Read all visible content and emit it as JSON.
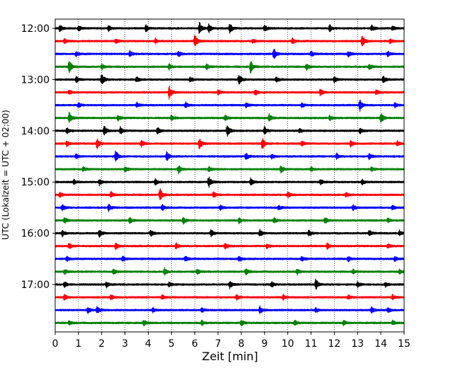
{
  "chart_data": {
    "type": "line",
    "subtype": "seismogram-helicorder",
    "xlabel": "Zeit  [min]",
    "ylabel": "UTC (Lokalzeit = UTC + 02:00)",
    "xlim": [
      0,
      15
    ],
    "x_ticks": [
      "0",
      "1",
      "2",
      "3",
      "4",
      "5",
      "6",
      "7",
      "8",
      "9",
      "10",
      "11",
      "12",
      "13",
      "14",
      "15"
    ],
    "y_tick_labels": [
      "12:00",
      "13:00",
      "14:00",
      "15:00",
      "16:00",
      "17:00"
    ],
    "grid": "vertical dotted at each minute",
    "line_minutes": 15,
    "start_time": "12:00",
    "color_cycle": [
      "#000000",
      "#ff0000",
      "#0000ff",
      "#008000"
    ],
    "traces": [
      {
        "time": "12:00",
        "color": "#000000",
        "events": [
          [
            0.2,
            0.6
          ],
          [
            1.0,
            0.5
          ],
          [
            2.3,
            0.5
          ],
          [
            3.9,
            0.6
          ],
          [
            6.2,
            1.0
          ],
          [
            6.6,
            0.7
          ],
          [
            7.5,
            1.0
          ],
          [
            9.0,
            0.5
          ],
          [
            11.8,
            0.6
          ],
          [
            13.6,
            0.5
          ],
          [
            14.5,
            0.4
          ]
        ]
      },
      {
        "time": "12:15",
        "color": "#ff0000",
        "events": [
          [
            0.4,
            0.4
          ],
          [
            2.6,
            0.5
          ],
          [
            4.3,
            0.4
          ],
          [
            6.0,
            1.1
          ],
          [
            8.5,
            0.4
          ],
          [
            10.2,
            0.5
          ],
          [
            13.2,
            1.0
          ],
          [
            14.4,
            0.4
          ]
        ]
      },
      {
        "time": "12:30",
        "color": "#0000ff",
        "events": [
          [
            0.9,
            0.4
          ],
          [
            3.2,
            0.5
          ],
          [
            5.3,
            0.5
          ],
          [
            9.4,
            0.9
          ],
          [
            11.0,
            0.5
          ],
          [
            12.6,
            0.5
          ],
          [
            14.3,
            0.4
          ]
        ]
      },
      {
        "time": "12:45",
        "color": "#008000",
        "events": [
          [
            0.6,
            1.1
          ],
          [
            2.0,
            0.5
          ],
          [
            4.9,
            0.5
          ],
          [
            6.5,
            0.5
          ],
          [
            8.4,
            1.1
          ],
          [
            10.8,
            0.5
          ],
          [
            13.5,
            0.6
          ]
        ]
      },
      {
        "time": "13:00",
        "color": "#000000",
        "events": [
          [
            0.9,
            0.5
          ],
          [
            2.0,
            1.0
          ],
          [
            3.5,
            0.5
          ],
          [
            5.8,
            0.5
          ],
          [
            7.9,
            1.0
          ],
          [
            9.5,
            0.5
          ],
          [
            12.0,
            0.5
          ],
          [
            14.1,
            0.6
          ]
        ]
      },
      {
        "time": "13:15",
        "color": "#ff0000",
        "events": [
          [
            0.6,
            0.4
          ],
          [
            4.9,
            1.1
          ],
          [
            7.0,
            0.4
          ],
          [
            8.6,
            0.5
          ],
          [
            11.4,
            0.6
          ],
          [
            13.8,
            0.4
          ]
        ]
      },
      {
        "time": "13:30",
        "color": "#0000ff",
        "events": [
          [
            1.0,
            0.4
          ],
          [
            3.5,
            0.4
          ],
          [
            5.6,
            0.5
          ],
          [
            8.2,
            0.4
          ],
          [
            10.6,
            0.4
          ],
          [
            13.1,
            1.0
          ],
          [
            14.6,
            0.4
          ]
        ]
      },
      {
        "time": "13:45",
        "color": "#008000",
        "events": [
          [
            0.6,
            1.0
          ],
          [
            2.7,
            0.5
          ],
          [
            5.0,
            0.5
          ],
          [
            7.3,
            0.5
          ],
          [
            9.2,
            0.6
          ],
          [
            11.8,
            0.4
          ],
          [
            14.0,
            0.9
          ]
        ]
      },
      {
        "time": "14:00",
        "color": "#000000",
        "events": [
          [
            0.5,
            0.5
          ],
          [
            2.1,
            0.8
          ],
          [
            2.8,
            0.6
          ],
          [
            4.4,
            0.6
          ],
          [
            7.4,
            1.1
          ],
          [
            9.0,
            0.7
          ],
          [
            10.5,
            0.4
          ],
          [
            13.1,
            0.5
          ]
        ]
      },
      {
        "time": "14:15",
        "color": "#ff0000",
        "events": [
          [
            0.5,
            0.5
          ],
          [
            1.8,
            0.9
          ],
          [
            3.7,
            0.6
          ],
          [
            6.2,
            0.9
          ],
          [
            8.9,
            1.0
          ],
          [
            10.6,
            0.5
          ],
          [
            12.7,
            0.5
          ],
          [
            14.7,
            0.4
          ]
        ]
      },
      {
        "time": "14:30",
        "color": "#0000ff",
        "events": [
          [
            0.9,
            0.4
          ],
          [
            2.6,
            1.1
          ],
          [
            4.8,
            0.8
          ],
          [
            8.2,
            0.6
          ],
          [
            9.3,
            0.4
          ],
          [
            12.1,
            0.5
          ],
          [
            13.5,
            0.5
          ]
        ]
      },
      {
        "time": "14:45",
        "color": "#008000",
        "events": [
          [
            1.2,
            0.4
          ],
          [
            3.0,
            0.5
          ],
          [
            5.3,
            0.7
          ],
          [
            6.6,
            0.5
          ],
          [
            9.7,
            0.6
          ],
          [
            11.0,
            0.4
          ],
          [
            13.6,
            0.4
          ]
        ]
      },
      {
        "time": "15:00",
        "color": "#000000",
        "events": [
          [
            0.8,
            0.4
          ],
          [
            1.9,
            0.5
          ],
          [
            4.3,
            0.5
          ],
          [
            6.6,
            1.0
          ],
          [
            8.4,
            0.6
          ],
          [
            11.4,
            0.5
          ],
          [
            13.2,
            0.5
          ]
        ]
      },
      {
        "time": "15:15",
        "color": "#ff0000",
        "events": [
          [
            0.2,
            0.4
          ],
          [
            2.4,
            0.5
          ],
          [
            4.5,
            1.1
          ],
          [
            6.8,
            0.5
          ],
          [
            10.0,
            0.5
          ],
          [
            12.5,
            0.4
          ]
        ]
      },
      {
        "time": "15:30",
        "color": "#0000ff",
        "events": [
          [
            0.3,
            0.6
          ],
          [
            2.3,
            0.6
          ],
          [
            4.6,
            0.5
          ],
          [
            7.1,
            0.4
          ],
          [
            9.6,
            0.4
          ],
          [
            12.8,
            0.5
          ],
          [
            14.5,
            0.4
          ]
        ]
      },
      {
        "time": "15:45",
        "color": "#008000",
        "events": [
          [
            0.4,
            0.5
          ],
          [
            3.2,
            0.5
          ],
          [
            5.5,
            0.6
          ],
          [
            7.9,
            0.5
          ],
          [
            9.4,
            0.5
          ],
          [
            11.6,
            0.5
          ],
          [
            14.3,
            0.4
          ]
        ]
      },
      {
        "time": "16:00",
        "color": "#000000",
        "events": [
          [
            0.3,
            0.5
          ],
          [
            1.9,
            0.7
          ],
          [
            4.1,
            0.6
          ],
          [
            6.7,
            0.6
          ],
          [
            8.8,
            0.6
          ],
          [
            10.9,
            0.5
          ],
          [
            13.5,
            0.5
          ],
          [
            14.8,
            0.4
          ]
        ]
      },
      {
        "time": "16:15",
        "color": "#ff0000",
        "events": [
          [
            0.6,
            0.5
          ],
          [
            2.6,
            0.5
          ],
          [
            5.2,
            0.6
          ],
          [
            7.3,
            0.5
          ],
          [
            9.1,
            0.4
          ],
          [
            11.7,
            0.5
          ],
          [
            14.3,
            0.4
          ]
        ]
      },
      {
        "time": "16:30",
        "color": "#0000ff",
        "events": [
          [
            0.5,
            0.4
          ],
          [
            2.9,
            0.5
          ],
          [
            5.6,
            0.5
          ],
          [
            7.9,
            0.4
          ],
          [
            10.6,
            0.4
          ],
          [
            12.6,
            0.4
          ],
          [
            14.6,
            0.4
          ]
        ]
      },
      {
        "time": "16:45",
        "color": "#008000",
        "events": [
          [
            0.4,
            0.4
          ],
          [
            2.5,
            0.5
          ],
          [
            4.7,
            0.6
          ],
          [
            6.1,
            0.5
          ],
          [
            8.2,
            0.6
          ],
          [
            10.4,
            0.5
          ],
          [
            12.8,
            0.4
          ],
          [
            14.8,
            0.4
          ]
        ]
      },
      {
        "time": "17:00",
        "color": "#000000",
        "events": [
          [
            0.4,
            0.5
          ],
          [
            2.2,
            0.5
          ],
          [
            4.9,
            0.4
          ],
          [
            7.5,
            0.6
          ],
          [
            9.3,
            0.5
          ],
          [
            11.2,
            1.0
          ],
          [
            13.0,
            0.5
          ],
          [
            14.2,
            0.4
          ]
        ]
      },
      {
        "time": "17:15",
        "color": "#ff0000",
        "events": [
          [
            0.4,
            0.5
          ],
          [
            2.4,
            0.4
          ],
          [
            4.6,
            0.4
          ],
          [
            7.8,
            0.5
          ],
          [
            9.8,
            0.4
          ],
          [
            12.6,
            0.4
          ],
          [
            14.5,
            0.4
          ]
        ]
      },
      {
        "time": "17:30",
        "color": "#0000ff",
        "events": [
          [
            1.4,
            0.5
          ],
          [
            1.8,
            0.6
          ],
          [
            4.2,
            0.4
          ],
          [
            6.3,
            0.4
          ],
          [
            8.8,
            0.6
          ],
          [
            11.2,
            0.4
          ],
          [
            13.6,
            0.5
          ],
          [
            14.3,
            0.4
          ]
        ]
      },
      {
        "time": "17:45",
        "color": "#008000",
        "events": [
          [
            0.6,
            0.4
          ],
          [
            3.8,
            0.5
          ],
          [
            6.3,
            0.4
          ],
          [
            8.0,
            0.5
          ],
          [
            10.3,
            0.4
          ],
          [
            12.4,
            0.4
          ],
          [
            14.5,
            0.4
          ]
        ]
      }
    ]
  }
}
